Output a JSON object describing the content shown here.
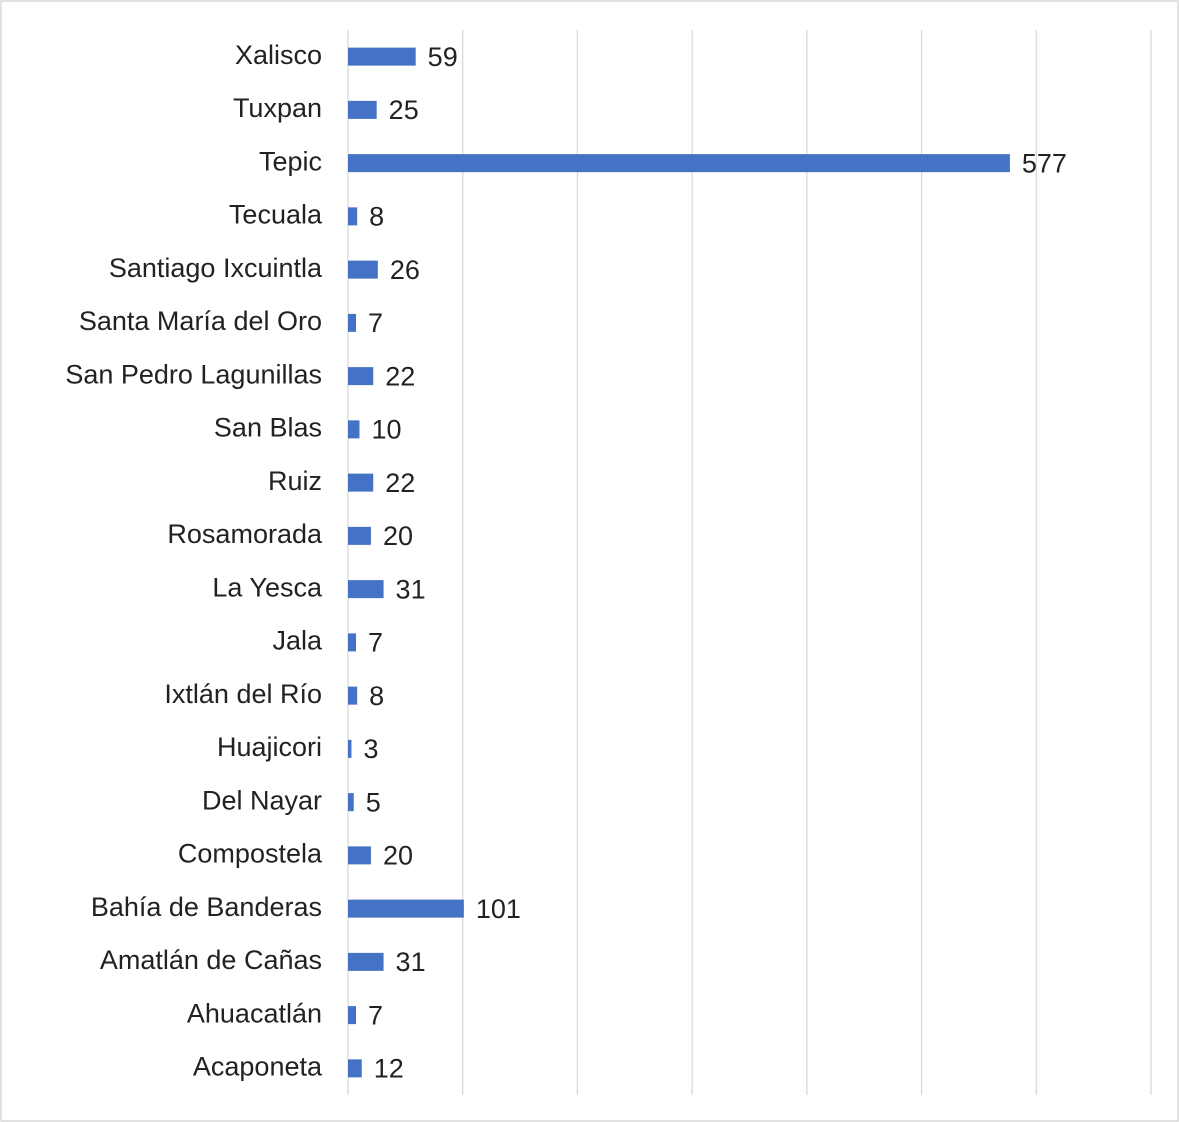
{
  "chart_data": {
    "type": "bar",
    "orientation": "horizontal",
    "categories": [
      "Xalisco",
      "Tuxpan",
      "Tepic",
      "Tecuala",
      "Santiago Ixcuintla",
      "Santa María del Oro",
      "San Pedro Lagunillas",
      "San Blas",
      "Ruiz",
      "Rosamorada",
      "La Yesca",
      "Jala",
      "Ixtlán del Río",
      "Huajicori",
      "Del Nayar",
      "Compostela",
      "Bahía de Banderas",
      "Amatlán de Cañas",
      "Ahuacatlán",
      "Acaponeta"
    ],
    "values": [
      59,
      25,
      577,
      8,
      26,
      7,
      22,
      10,
      22,
      20,
      31,
      7,
      8,
      3,
      5,
      20,
      101,
      31,
      7,
      12
    ],
    "color": "#4472c4",
    "xlim": [
      0,
      700
    ],
    "xticks": [
      0,
      100,
      200,
      300,
      400,
      500,
      600,
      700
    ],
    "grid": true
  }
}
